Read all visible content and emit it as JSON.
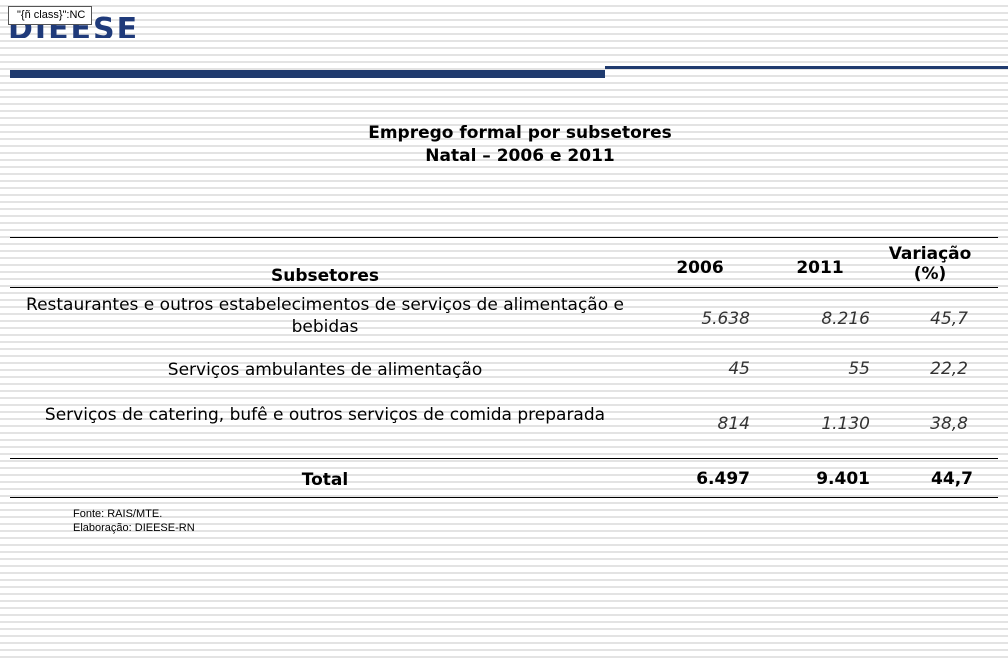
{
  "header": {
    "badge": "\"{ñ class}\":NC",
    "logo": "DIEESE"
  },
  "title": [
    "Emprego formal por subsetores",
    "Natal – 2006 e 2011"
  ],
  "table": {
    "columns": [
      "Subsetores",
      "2006",
      "2011",
      "Variação (%)"
    ],
    "rows": [
      [
        "Restaurantes e outros estabelecimentos de serviços de alimentação e bebidas",
        "5.638",
        "8.216",
        "45,7"
      ],
      [
        "Serviços ambulantes de alimentação",
        "45",
        "55",
        "22,2"
      ],
      [
        "Serviços de catering, bufê e outros serviços de comida preparada",
        "814",
        "1.130",
        "38,8"
      ]
    ],
    "total": [
      "Total",
      "6.497",
      "9.401",
      "44,7"
    ]
  },
  "source": [
    "Fonte: RAIS/MTE.",
    "Elaboração: DIEESE-RN"
  ]
}
